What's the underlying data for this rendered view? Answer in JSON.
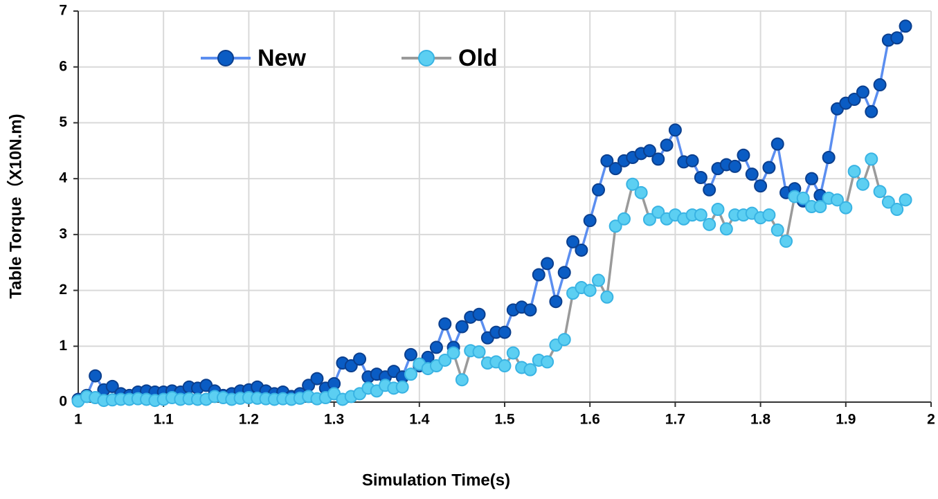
{
  "chart_data": {
    "type": "line",
    "x_label": "Simulation Time(s)",
    "y_label": "Table Torque（X10N.m)",
    "x": [
      1,
      1.01,
      1.02,
      1.03,
      1.04,
      1.05,
      1.06,
      1.07,
      1.08,
      1.09,
      1.1,
      1.11,
      1.12,
      1.13,
      1.14,
      1.15,
      1.16,
      1.17,
      1.18,
      1.19,
      1.2,
      1.21,
      1.22,
      1.23,
      1.24,
      1.25,
      1.26,
      1.27,
      1.28,
      1.29,
      1.3,
      1.31,
      1.32,
      1.33,
      1.34,
      1.35,
      1.36,
      1.37,
      1.38,
      1.39,
      1.4,
      1.41,
      1.42,
      1.43,
      1.44,
      1.45,
      1.46,
      1.47,
      1.48,
      1.49,
      1.5,
      1.51,
      1.52,
      1.53,
      1.54,
      1.55,
      1.56,
      1.57,
      1.58,
      1.59,
      1.6,
      1.61,
      1.62,
      1.63,
      1.64,
      1.65,
      1.66,
      1.67,
      1.68,
      1.69,
      1.7,
      1.71,
      1.72,
      1.73,
      1.74,
      1.75,
      1.76,
      1.77,
      1.78,
      1.79,
      1.8,
      1.81,
      1.82,
      1.83,
      1.84,
      1.85,
      1.86,
      1.87,
      1.88,
      1.89,
      1.9,
      1.91,
      1.92,
      1.93,
      1.94,
      1.95,
      1.96,
      1.97
    ],
    "series": [
      {
        "name": "New",
        "line_color": "#5b8ef0",
        "color": "#0a5cc4",
        "marker_stroke": "#0b3f8e",
        "values": [
          0.05,
          0.12,
          0.47,
          0.22,
          0.28,
          0.15,
          0.12,
          0.18,
          0.2,
          0.18,
          0.18,
          0.2,
          0.18,
          0.27,
          0.25,
          0.3,
          0.2,
          0.12,
          0.15,
          0.2,
          0.22,
          0.27,
          0.2,
          0.15,
          0.18,
          0.1,
          0.15,
          0.3,
          0.42,
          0.25,
          0.33,
          0.7,
          0.65,
          0.77,
          0.45,
          0.5,
          0.45,
          0.55,
          0.45,
          0.85,
          0.65,
          0.8,
          0.98,
          1.4,
          0.98,
          1.35,
          1.52,
          1.57,
          1.15,
          1.25,
          1.25,
          1.65,
          1.7,
          1.65,
          2.28,
          2.48,
          1.8,
          2.32,
          2.87,
          2.72,
          3.25,
          3.8,
          4.32,
          4.18,
          4.32,
          4.38,
          4.45,
          4.5,
          4.35,
          4.6,
          4.87,
          4.3,
          4.32,
          4.02,
          3.8,
          4.18,
          4.25,
          4.22,
          4.42,
          4.08,
          3.87,
          4.2,
          4.62,
          3.75,
          3.82,
          3.6,
          4.0,
          3.7,
          4.38,
          5.25,
          5.35,
          5.42,
          5.55,
          5.2,
          5.68,
          6.48,
          6.52,
          6.73
        ]
      },
      {
        "name": "Old",
        "line_color": "#9a9a9a",
        "color": "#5ccff2",
        "marker_stroke": "#39b3e3",
        "values": [
          0.02,
          0.1,
          0.08,
          0.03,
          0.04,
          0.05,
          0.05,
          0.06,
          0.05,
          0.03,
          0.05,
          0.08,
          0.05,
          0.06,
          0.05,
          0.05,
          0.1,
          0.08,
          0.05,
          0.07,
          0.08,
          0.07,
          0.06,
          0.05,
          0.06,
          0.05,
          0.07,
          0.1,
          0.06,
          0.08,
          0.15,
          0.05,
          0.1,
          0.15,
          0.25,
          0.2,
          0.3,
          0.25,
          0.27,
          0.5,
          0.68,
          0.6,
          0.65,
          0.75,
          0.88,
          0.4,
          0.92,
          0.9,
          0.7,
          0.72,
          0.65,
          0.88,
          0.62,
          0.58,
          0.75,
          0.72,
          1.02,
          1.12,
          1.95,
          2.05,
          2.0,
          2.18,
          1.88,
          3.15,
          3.28,
          3.9,
          3.75,
          3.27,
          3.4,
          3.28,
          3.35,
          3.28,
          3.35,
          3.35,
          3.18,
          3.45,
          3.1,
          3.35,
          3.35,
          3.38,
          3.3,
          3.35,
          3.08,
          2.88,
          3.68,
          3.65,
          3.5,
          3.5,
          3.65,
          3.62,
          3.48,
          4.13,
          3.9,
          4.35,
          3.77,
          3.58,
          3.45,
          3.62
        ]
      }
    ],
    "xlim": [
      1,
      2
    ],
    "xticks": [
      1,
      1.1,
      1.2,
      1.3,
      1.4,
      1.5,
      1.6,
      1.7,
      1.8,
      1.9,
      2
    ],
    "ylim": [
      0,
      7
    ],
    "yticks": [
      0,
      1,
      2,
      3,
      4,
      5,
      6,
      7
    ],
    "grid": true,
    "legend": "top-left"
  }
}
